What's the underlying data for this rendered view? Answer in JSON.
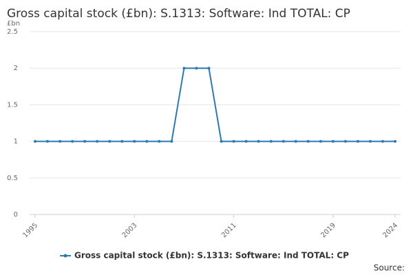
{
  "chart_data": {
    "type": "line",
    "title": "Gross capital stock (£bn): S.1313: Software: Ind TOTAL: CP",
    "y_label": "£bn",
    "source": "Source:",
    "x": [
      1995,
      1996,
      1997,
      1998,
      1999,
      2000,
      2001,
      2002,
      2003,
      2004,
      2005,
      2006,
      2007,
      2008,
      2009,
      2010,
      2011,
      2012,
      2013,
      2014,
      2015,
      2016,
      2017,
      2018,
      2019,
      2020,
      2021,
      2022,
      2023,
      2024
    ],
    "series": [
      {
        "name": "Gross capital stock (£bn): S.1313: Software: Ind TOTAL: CP",
        "color": "#2a7ab0",
        "values": [
          1,
          1,
          1,
          1,
          1,
          1,
          1,
          1,
          1,
          1,
          1,
          1,
          2,
          2,
          2,
          1,
          1,
          1,
          1,
          1,
          1,
          1,
          1,
          1,
          1,
          1,
          1,
          1,
          1,
          1
        ]
      }
    ],
    "xlim": [
      1995,
      2024
    ],
    "xticks": [
      1995,
      2003,
      2011,
      2019,
      2024
    ],
    "ylim": [
      0,
      2.5
    ],
    "yticks": [
      0,
      0.5,
      1,
      1.5,
      2,
      2.5
    ],
    "grid": true
  }
}
